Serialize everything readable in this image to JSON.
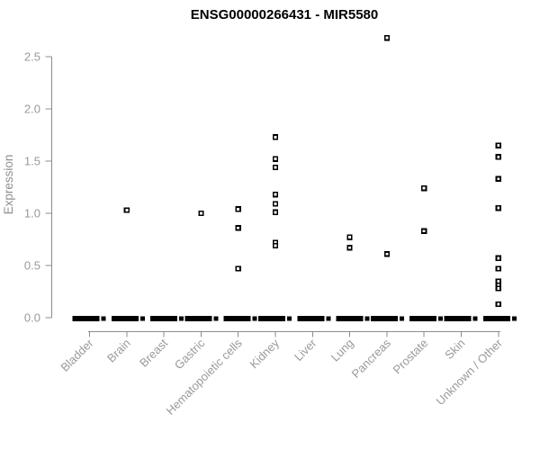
{
  "chart_data": {
    "type": "scatter",
    "title": "ENSG00000266431 - MIR5580",
    "ylabel": "Expression",
    "xlabel": "",
    "ylim": [
      0,
      2.5
    ],
    "yticks": [
      "0.0",
      "0.5",
      "1.0",
      "1.5",
      "2.0",
      "2.5"
    ],
    "grid": false,
    "legend": false,
    "marker": "open-square",
    "note": "each category shows a dense cluster of samples at expression 0 drawn as a thick black bar",
    "categories": [
      "Bladder",
      "Brain",
      "Breast",
      "Gastric",
      "Hematopoietic cells",
      "Kidney",
      "Liver",
      "Lung",
      "Pancreas",
      "Prostate",
      "Skin",
      "Unknown / Other"
    ],
    "series": [
      {
        "category": "Bladder",
        "zero_cluster": true,
        "values_above_zero": []
      },
      {
        "category": "Brain",
        "zero_cluster": true,
        "values_above_zero": [
          1.03
        ]
      },
      {
        "category": "Breast",
        "zero_cluster": true,
        "values_above_zero": []
      },
      {
        "category": "Gastric",
        "zero_cluster": true,
        "values_above_zero": [
          1.0
        ]
      },
      {
        "category": "Hematopoietic cells",
        "zero_cluster": true,
        "values_above_zero": [
          1.04,
          0.86,
          0.47
        ]
      },
      {
        "category": "Kidney",
        "zero_cluster": true,
        "values_above_zero": [
          1.73,
          1.52,
          1.44,
          1.18,
          1.09,
          1.01,
          0.72,
          0.69
        ]
      },
      {
        "category": "Liver",
        "zero_cluster": true,
        "values_above_zero": []
      },
      {
        "category": "Lung",
        "zero_cluster": true,
        "values_above_zero": [
          0.77,
          0.67
        ]
      },
      {
        "category": "Pancreas",
        "zero_cluster": true,
        "values_above_zero": [
          2.68,
          0.61
        ]
      },
      {
        "category": "Prostate",
        "zero_cluster": true,
        "values_above_zero": [
          1.24,
          0.83
        ]
      },
      {
        "category": "Skin",
        "zero_cluster": true,
        "values_above_zero": []
      },
      {
        "category": "Unknown / Other",
        "zero_cluster": true,
        "values_above_zero": [
          1.65,
          1.54,
          1.33,
          1.05,
          0.57,
          0.47,
          0.35,
          0.31,
          0.28,
          0.13
        ]
      }
    ]
  },
  "colors": {
    "point_stroke": "#000000",
    "point_fill": "#ffffff",
    "zero_bar": "#000000",
    "axis": "#8c8c8c",
    "tick_label": "#9a9a9a",
    "title": "#000000",
    "background": "#ffffff"
  }
}
